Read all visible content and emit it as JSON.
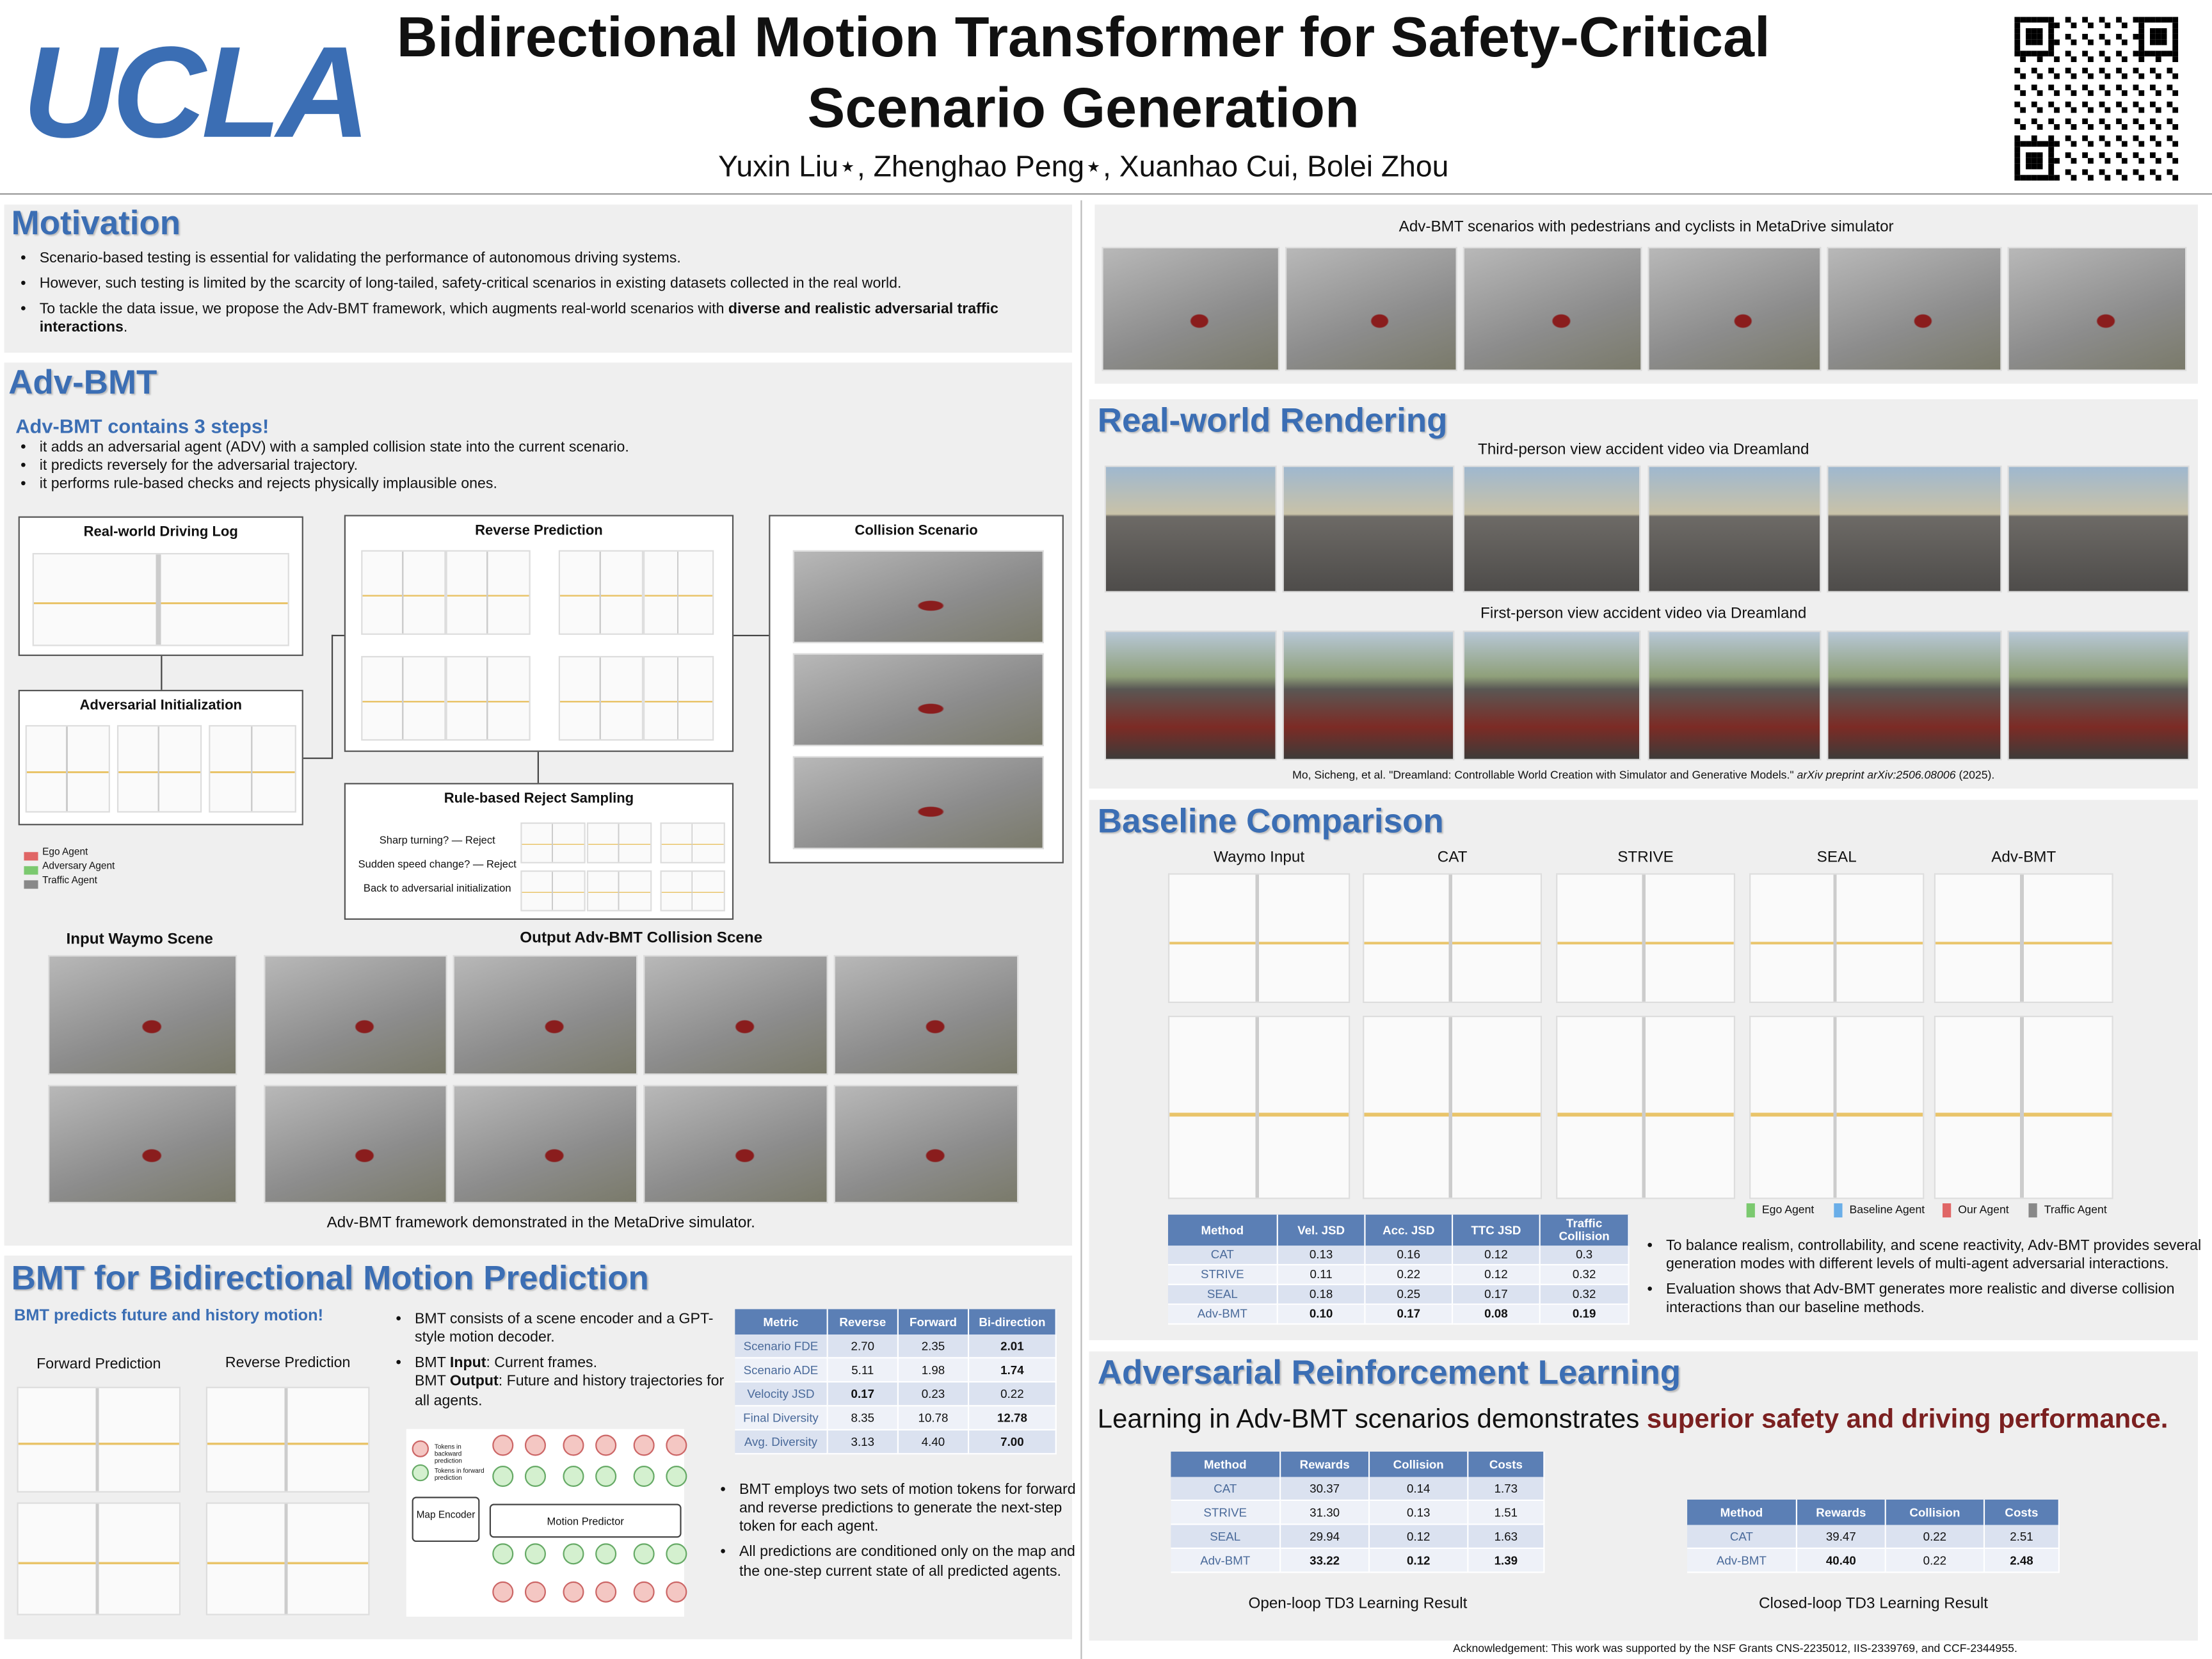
{
  "header": {
    "logo": "UCLA",
    "title": "Bidirectional Motion Transformer for Safety-Critical Scenario Generation",
    "authors": "Yuxin Liu⋆, Zhenghao Peng⋆, Xuanhao Cui, Bolei Zhou"
  },
  "motivation": {
    "title": "Motivation",
    "bullets": [
      "Scenario-based testing is essential for validating the performance of autonomous driving systems.",
      "However, such testing is limited by the scarcity of long-tailed, safety-critical scenarios in existing datasets collected in the real world.",
      [
        "To tackle the data issue, we propose the Adv-BMT framework, which augments real-world scenarios with ",
        {
          "text": "diverse and realistic adversarial traffic interactions",
          "bold": true
        },
        "."
      ]
    ]
  },
  "adv_bmt": {
    "title": "Adv-BMT",
    "subtitle": "Adv-BMT contains 3 steps!",
    "steps": [
      "it adds an adversarial agent (ADV) with a sampled collision state into the current scenario.",
      "it predicts reversely for the adversarial trajectory.",
      "it performs rule-based checks and rejects physically implausible ones."
    ],
    "diagram": {
      "driving_log": "Real-world Driving Log",
      "initialization": "Adversarial Initialization",
      "reverse": "Reverse Prediction",
      "collision": "Collision Scenario",
      "reject": "Rule-based Reject Sampling",
      "reject_rules": [
        "Sharp turning? — Reject",
        "Sudden speed change? — Reject",
        "Back to adversarial initialization"
      ],
      "legend": [
        {
          "name": "Ego Agent",
          "color": "#e06666"
        },
        {
          "name": "Adversary Agent",
          "color": "#7bc96f"
        },
        {
          "name": "Traffic Agent",
          "color": "#888888"
        }
      ]
    },
    "input_label": "Input Waymo Scene",
    "output_label": "Output Adv-BMT Collision Scene",
    "caption": "Adv-BMT framework demonstrated in the MetaDrive simulator."
  },
  "bmt": {
    "title": "BMT for Bidirectional Motion Prediction",
    "subtitle": "BMT predicts future and history motion!",
    "forward": "Forward Prediction",
    "reverse": "Reverse Prediction",
    "bullets": [
      "BMT consists of a scene encoder and a GPT-style motion decoder.",
      [
        "BMT ",
        {
          "text": "Input",
          "bold": true
        },
        ": Current frames."
      ],
      [
        "BMT ",
        {
          "text": "Output",
          "bold": true
        },
        ": Future and history trajectories for all agents."
      ]
    ],
    "bullets2": [
      "BMT employs two sets of motion tokens for forward and reverse predictions to generate the next-step token for each agent.",
      "All predictions are conditioned only on the map and the one-step current state of all predicted agents."
    ],
    "diagram": {
      "backward_tokens": "Tokens in backward prediction",
      "forward_tokens": "Tokens in forward prediction",
      "map_encoder": "Map Encoder",
      "motion_predictor": "Motion Predictor"
    },
    "table": {
      "header": [
        "Metric",
        "Reverse",
        "Forward",
        "Bi-direction"
      ],
      "rows": [
        [
          "Scenario FDE",
          "2.70",
          "2.35",
          "2.01"
        ],
        [
          "Scenario ADE",
          "5.11",
          "1.98",
          "1.74"
        ],
        [
          "Velocity JSD",
          "0.17",
          "0.23",
          "0.22"
        ],
        [
          "Final Diversity",
          "8.35",
          "10.78",
          "12.78"
        ],
        [
          "Avg. Diversity",
          "3.13",
          "4.40",
          "7.00"
        ]
      ],
      "bold_cells": [
        [
          0,
          3
        ],
        [
          1,
          3
        ],
        [
          2,
          1
        ],
        [
          3,
          3
        ],
        [
          4,
          3
        ]
      ]
    }
  },
  "pedestrians": {
    "caption": "Adv-BMT scenarios with pedestrians and cyclists in MetaDrive simulator"
  },
  "rendering": {
    "title": "Real-world Rendering",
    "third_person": "Third-person view accident video via Dreamland",
    "first_person": "First-person view accident video via Dreamland",
    "citation": [
      "Mo, Sicheng, et al. \"Dreamland: Controllable World Creation with Simulator and Generative Models.\" ",
      {
        "text": "arXiv preprint arXiv:2506.08006",
        "italic": true
      },
      " (2025)."
    ]
  },
  "baseline": {
    "title": "Baseline Comparison",
    "columns": [
      "Waymo Input",
      "CAT",
      "STRIVE",
      "SEAL",
      "Adv-BMT"
    ],
    "legend": [
      {
        "name": "Ego Agent",
        "color": "#7bc96f"
      },
      {
        "name": "Baseline Agent",
        "color": "#6aaee8"
      },
      {
        "name": "Our Agent",
        "color": "#e06666"
      },
      {
        "name": "Traffic Agent",
        "color": "#888888"
      }
    ],
    "table": {
      "header": [
        "Method",
        "Vel. JSD",
        "Acc. JSD",
        "TTC JSD",
        "Traffic Collision"
      ],
      "rows": [
        [
          "CAT",
          "0.13",
          "0.16",
          "0.12",
          "0.3"
        ],
        [
          "STRIVE",
          "0.11",
          "0.22",
          "0.12",
          "0.32"
        ],
        [
          "SEAL",
          "0.18",
          "0.25",
          "0.17",
          "0.32"
        ],
        [
          "Adv-BMT",
          "0.10",
          "0.17",
          "0.08",
          "0.19"
        ]
      ],
      "bold_cells": [
        [
          3,
          1
        ],
        [
          3,
          2
        ],
        [
          3,
          3
        ],
        [
          3,
          4
        ]
      ]
    },
    "bullets": [
      "To balance realism, controllability, and scene reactivity, Adv-BMT provides several generation modes with different levels of multi-agent adversarial interactions.",
      "Evaluation shows that Adv-BMT generates more realistic and diverse collision interactions than our baseline methods."
    ]
  },
  "rl": {
    "title": "Adversarial Reinforcement Learning",
    "lead": [
      "Learning in Adv-BMT scenarios demonstrates ",
      {
        "text": "superior safety and driving performance.",
        "bold": true,
        "color": "#7b2020"
      }
    ],
    "open_loop": {
      "header": [
        "Method",
        "Rewards",
        "Collision",
        "Costs"
      ],
      "rows": [
        [
          "CAT",
          "30.37",
          "0.14",
          "1.73"
        ],
        [
          "STRIVE",
          "31.30",
          "0.13",
          "1.51"
        ],
        [
          "SEAL",
          "29.94",
          "0.12",
          "1.63"
        ],
        [
          "Adv-BMT",
          "33.22",
          "0.12",
          "1.39"
        ]
      ],
      "bold_cells": [
        [
          3,
          1
        ],
        [
          3,
          2
        ],
        [
          3,
          3
        ]
      ],
      "caption": "Open-loop TD3 Learning Result"
    },
    "closed_loop": {
      "header": [
        "Method",
        "Rewards",
        "Collision",
        "Costs"
      ],
      "rows": [
        [
          "CAT",
          "39.47",
          "0.22",
          "2.51"
        ],
        [
          "Adv-BMT",
          "40.40",
          "0.22",
          "2.48"
        ]
      ],
      "bold_cells": [
        [
          1,
          1
        ],
        [
          1,
          3
        ]
      ],
      "caption": "Closed-loop TD3 Learning Result"
    }
  },
  "acknowledgement": "Acknowledgement: This work was supported by the NSF Grants CNS-2235012, IIS-2339769, and CCF-2344955."
}
